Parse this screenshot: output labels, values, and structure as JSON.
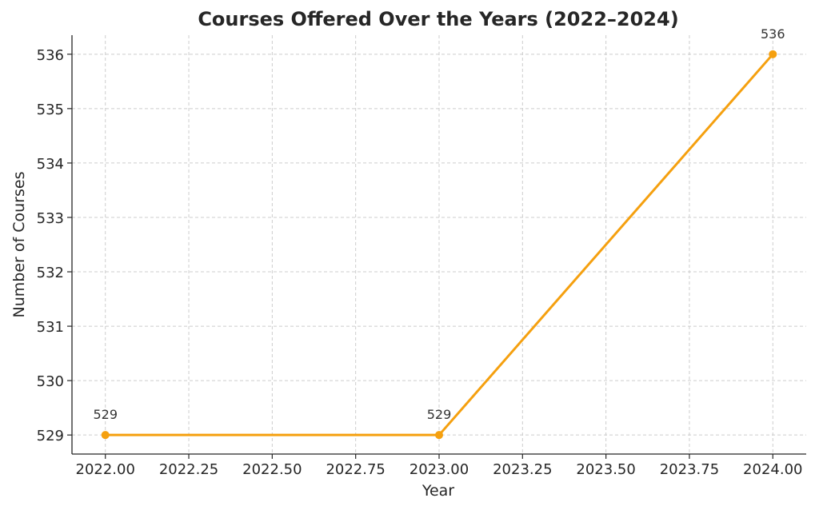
{
  "chart_data": {
    "type": "line",
    "title": "Courses Offered Over the Years (2022–2024)",
    "xlabel": "Year",
    "ylabel": "Number of Courses",
    "x": [
      2022,
      2023,
      2024
    ],
    "series": [
      {
        "values": [
          529,
          529,
          536
        ],
        "color": "#f5a00f",
        "data_labels": [
          "529",
          "529",
          "536"
        ]
      }
    ],
    "xlim": [
      2021.9,
      2024.1
    ],
    "ylim": [
      528.65,
      536.35
    ],
    "xticks": [
      2022.0,
      2022.25,
      2022.5,
      2022.75,
      2023.0,
      2023.25,
      2023.5,
      2023.75,
      2024.0
    ],
    "xtick_labels": [
      "2022.00",
      "2022.25",
      "2022.50",
      "2022.75",
      "2023.00",
      "2023.25",
      "2023.50",
      "2023.75",
      "2024.00"
    ],
    "yticks": [
      529,
      530,
      531,
      532,
      533,
      534,
      535,
      536
    ],
    "ytick_labels": [
      "529",
      "530",
      "531",
      "532",
      "533",
      "534",
      "535",
      "536"
    ],
    "grid": true,
    "grid_style": "dashed",
    "marker": "circle"
  }
}
